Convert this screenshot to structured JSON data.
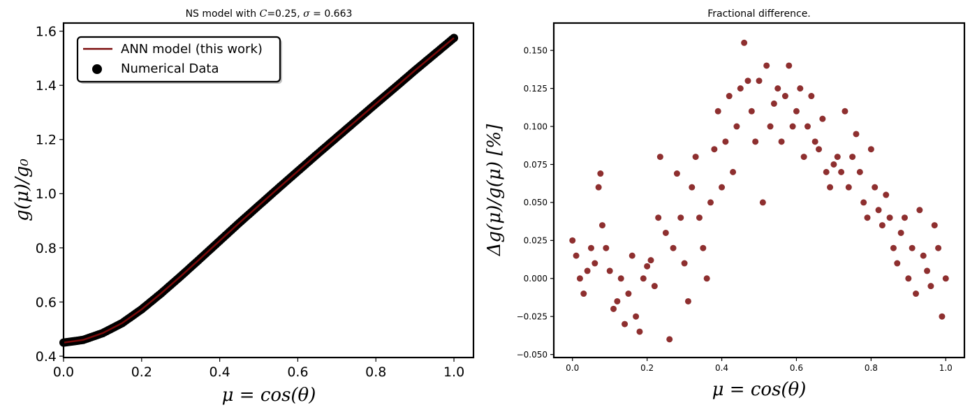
{
  "chart_data": [
    {
      "type": "line",
      "title_parts": [
        "NS model with ",
        "C",
        "=0.25, ",
        "σ",
        " = 0.663"
      ],
      "xlabel": "μ = cos(θ)",
      "ylabel": "g(μ)/g₀",
      "xlim": [
        0.0,
        1.05
      ],
      "ylim": [
        0.395,
        1.63
      ],
      "xticks": [
        0.0,
        0.2,
        0.4,
        0.6,
        0.8,
        1.0
      ],
      "xtick_labels": [
        "0.0",
        "0.2",
        "0.4",
        "0.6",
        "0.8",
        "1.0"
      ],
      "yticks": [
        0.4,
        0.6,
        0.8,
        1.0,
        1.2,
        1.4,
        1.6
      ],
      "ytick_labels": [
        "0.4",
        "0.6",
        "0.8",
        "1.0",
        "1.2",
        "1.4",
        "1.6"
      ],
      "grid": false,
      "legend_position": "top-left",
      "colors": {
        "line": "#7a0a0a",
        "points": "#000000"
      },
      "series": [
        {
          "name": "ANN model (this work)",
          "kind": "line",
          "x": [
            0.0,
            0.05,
            0.1,
            0.15,
            0.2,
            0.25,
            0.3,
            0.35,
            0.4,
            0.45,
            0.5,
            0.55,
            0.6,
            0.65,
            0.7,
            0.75,
            0.8,
            0.85,
            0.9,
            0.95,
            1.0
          ],
          "y": [
            0.45,
            0.46,
            0.485,
            0.522,
            0.573,
            0.632,
            0.695,
            0.76,
            0.826,
            0.892,
            0.956,
            1.02,
            1.083,
            1.146,
            1.208,
            1.27,
            1.332,
            1.393,
            1.455,
            1.515,
            1.575
          ]
        },
        {
          "name": "Numerical Data",
          "kind": "scatter",
          "x": [
            0.0,
            0.05,
            0.1,
            0.15,
            0.2,
            0.25,
            0.3,
            0.35,
            0.4,
            0.45,
            0.5,
            0.55,
            0.6,
            0.65,
            0.7,
            0.75,
            0.8,
            0.85,
            0.9,
            0.95,
            1.0
          ],
          "y": [
            0.45,
            0.46,
            0.485,
            0.522,
            0.573,
            0.632,
            0.695,
            0.76,
            0.826,
            0.892,
            0.956,
            1.02,
            1.083,
            1.146,
            1.208,
            1.27,
            1.332,
            1.393,
            1.455,
            1.515,
            1.575
          ]
        }
      ]
    },
    {
      "type": "scatter",
      "title": "Fractional difference.",
      "xlabel": "μ = cos(θ)",
      "ylabel": "Δg(μ)/g(μ) [%]",
      "xlim": [
        -0.05,
        1.05
      ],
      "ylim": [
        -0.052,
        0.168
      ],
      "xticks": [
        0.0,
        0.2,
        0.4,
        0.6,
        0.8,
        1.0
      ],
      "xtick_labels": [
        "0.0",
        "0.2",
        "0.4",
        "0.6",
        "0.8",
        "1.0"
      ],
      "yticks": [
        -0.05,
        -0.025,
        0.0,
        0.025,
        0.05,
        0.075,
        0.1,
        0.125,
        0.15
      ],
      "ytick_labels": [
        "−0.050",
        "−0.025",
        "0.000",
        "0.025",
        "0.050",
        "0.075",
        "0.100",
        "0.125",
        "0.150"
      ],
      "grid": false,
      "colors": {
        "points": "#7a0a0a"
      },
      "series": [
        {
          "kind": "scatter",
          "x": [
            0.0,
            0.01,
            0.02,
            0.03,
            0.04,
            0.05,
            0.06,
            0.07,
            0.075,
            0.08,
            0.09,
            0.1,
            0.11,
            0.12,
            0.13,
            0.14,
            0.15,
            0.16,
            0.17,
            0.18,
            0.19,
            0.2,
            0.21,
            0.22,
            0.23,
            0.235,
            0.25,
            0.26,
            0.27,
            0.28,
            0.29,
            0.3,
            0.31,
            0.32,
            0.33,
            0.34,
            0.35,
            0.36,
            0.37,
            0.38,
            0.39,
            0.4,
            0.41,
            0.42,
            0.43,
            0.44,
            0.45,
            0.46,
            0.47,
            0.48,
            0.49,
            0.5,
            0.51,
            0.52,
            0.53,
            0.54,
            0.55,
            0.56,
            0.57,
            0.58,
            0.59,
            0.6,
            0.61,
            0.62,
            0.63,
            0.64,
            0.65,
            0.66,
            0.67,
            0.68,
            0.69,
            0.7,
            0.71,
            0.72,
            0.73,
            0.74,
            0.75,
            0.76,
            0.77,
            0.78,
            0.79,
            0.8,
            0.81,
            0.82,
            0.83,
            0.84,
            0.85,
            0.86,
            0.87,
            0.88,
            0.89,
            0.9,
            0.91,
            0.92,
            0.93,
            0.94,
            0.95,
            0.96,
            0.97,
            0.98,
            0.99,
            1.0
          ],
          "y": [
            0.025,
            0.015,
            0.0,
            -0.01,
            0.005,
            0.02,
            0.01,
            0.06,
            0.069,
            0.035,
            0.02,
            0.005,
            -0.02,
            -0.015,
            0.0,
            -0.03,
            -0.01,
            0.015,
            -0.025,
            -0.035,
            0.0,
            0.008,
            0.012,
            -0.005,
            0.04,
            0.08,
            0.03,
            -0.04,
            0.02,
            0.069,
            0.04,
            0.01,
            -0.015,
            0.06,
            0.08,
            0.04,
            0.02,
            0.0,
            0.05,
            0.085,
            0.11,
            0.06,
            0.09,
            0.12,
            0.07,
            0.1,
            0.125,
            0.155,
            0.13,
            0.11,
            0.09,
            0.13,
            0.05,
            0.14,
            0.1,
            0.115,
            0.125,
            0.09,
            0.12,
            0.14,
            0.1,
            0.11,
            0.125,
            0.08,
            0.1,
            0.12,
            0.09,
            0.085,
            0.105,
            0.07,
            0.06,
            0.075,
            0.08,
            0.07,
            0.11,
            0.06,
            0.08,
            0.095,
            0.07,
            0.05,
            0.04,
            0.085,
            0.06,
            0.045,
            0.035,
            0.055,
            0.04,
            0.02,
            0.01,
            0.03,
            0.04,
            0.0,
            0.02,
            -0.01,
            0.045,
            0.015,
            0.005,
            -0.005,
            0.035,
            0.02,
            -0.025,
            0.0
          ]
        }
      ]
    }
  ]
}
